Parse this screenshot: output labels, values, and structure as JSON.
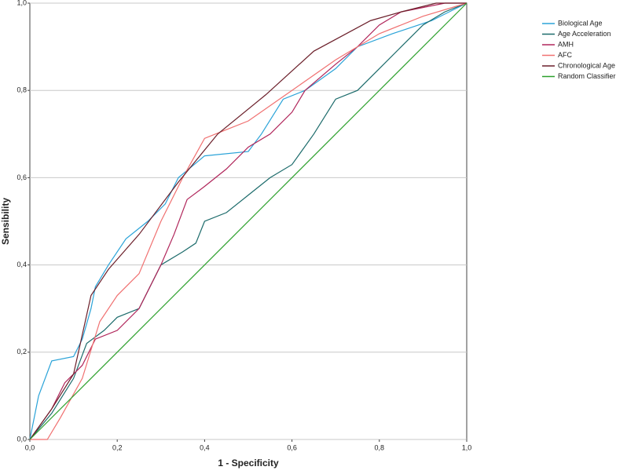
{
  "chart_data": {
    "type": "line",
    "xlabel": "1 - Specificity",
    "ylabel": "Sensibility",
    "xlim": [
      0,
      1
    ],
    "ylim": [
      0,
      1
    ],
    "xticks": [
      {
        "value": 0,
        "label": "0,0"
      },
      {
        "value": 0.2,
        "label": "0,2"
      },
      {
        "value": 0.4,
        "label": "0,4"
      },
      {
        "value": 0.6,
        "label": "0,6"
      },
      {
        "value": 0.8,
        "label": "0,8"
      },
      {
        "value": 1,
        "label": "1,0"
      }
    ],
    "yticks": [
      {
        "value": 0,
        "label": "0,0"
      },
      {
        "value": 0.2,
        "label": "0,2"
      },
      {
        "value": 0.4,
        "label": "0,4"
      },
      {
        "value": 0.6,
        "label": "0,6"
      },
      {
        "value": 0.8,
        "label": "0,8"
      },
      {
        "value": 1,
        "label": "1,0"
      }
    ],
    "grid": true,
    "legend": "right",
    "series": [
      {
        "name": "Biological Age",
        "color": "#2aa3d8",
        "x": [
          0,
          0.02,
          0.05,
          0.1,
          0.12,
          0.14,
          0.15,
          0.18,
          0.22,
          0.27,
          0.31,
          0.34,
          0.4,
          0.5,
          0.53,
          0.58,
          0.63,
          0.7,
          0.75,
          0.83,
          0.92,
          1
        ],
        "values": [
          0,
          0.1,
          0.18,
          0.19,
          0.23,
          0.3,
          0.35,
          0.4,
          0.46,
          0.5,
          0.54,
          0.6,
          0.65,
          0.66,
          0.7,
          0.78,
          0.8,
          0.85,
          0.9,
          0.93,
          0.96,
          1
        ]
      },
      {
        "name": "Age Acceleration",
        "color": "#1c6b6b",
        "x": [
          0,
          0.05,
          0.1,
          0.13,
          0.17,
          0.2,
          0.25,
          0.3,
          0.35,
          0.38,
          0.4,
          0.45,
          0.5,
          0.55,
          0.6,
          0.65,
          0.7,
          0.75,
          0.8,
          0.85,
          0.9,
          0.95,
          1
        ],
        "values": [
          0,
          0.06,
          0.14,
          0.22,
          0.25,
          0.28,
          0.3,
          0.4,
          0.43,
          0.45,
          0.5,
          0.52,
          0.56,
          0.6,
          0.63,
          0.7,
          0.78,
          0.8,
          0.85,
          0.9,
          0.95,
          0.98,
          1
        ]
      },
      {
        "name": "AMH",
        "color": "#b0255a",
        "x": [
          0,
          0.05,
          0.08,
          0.12,
          0.15,
          0.2,
          0.25,
          0.3,
          0.33,
          0.36,
          0.4,
          0.45,
          0.5,
          0.55,
          0.6,
          0.63,
          0.7,
          0.75,
          0.8,
          0.85,
          0.95,
          1
        ],
        "values": [
          0,
          0.07,
          0.13,
          0.17,
          0.23,
          0.25,
          0.3,
          0.4,
          0.47,
          0.55,
          0.58,
          0.62,
          0.67,
          0.7,
          0.75,
          0.8,
          0.86,
          0.9,
          0.95,
          0.98,
          1,
          1
        ]
      },
      {
        "name": "AFC",
        "color": "#f07070",
        "x": [
          0,
          0.04,
          0.07,
          0.12,
          0.16,
          0.2,
          0.25,
          0.3,
          0.35,
          0.4,
          0.45,
          0.5,
          0.6,
          0.7,
          0.8,
          0.9,
          1
        ],
        "values": [
          0,
          0,
          0.05,
          0.14,
          0.27,
          0.33,
          0.38,
          0.5,
          0.6,
          0.69,
          0.71,
          0.73,
          0.8,
          0.87,
          0.93,
          0.97,
          1
        ]
      },
      {
        "name": "Chronological Age",
        "color": "#6b1f2a",
        "x": [
          0,
          0.05,
          0.1,
          0.14,
          0.18,
          0.25,
          0.34,
          0.43,
          0.54,
          0.65,
          0.78,
          0.85,
          0.93,
          1
        ],
        "values": [
          0,
          0.07,
          0.15,
          0.33,
          0.39,
          0.47,
          0.59,
          0.7,
          0.79,
          0.89,
          0.96,
          0.98,
          1,
          1
        ]
      },
      {
        "name": "Random Classifier",
        "color": "#2ca02c",
        "x": [
          0,
          1
        ],
        "values": [
          0,
          1
        ]
      }
    ]
  }
}
